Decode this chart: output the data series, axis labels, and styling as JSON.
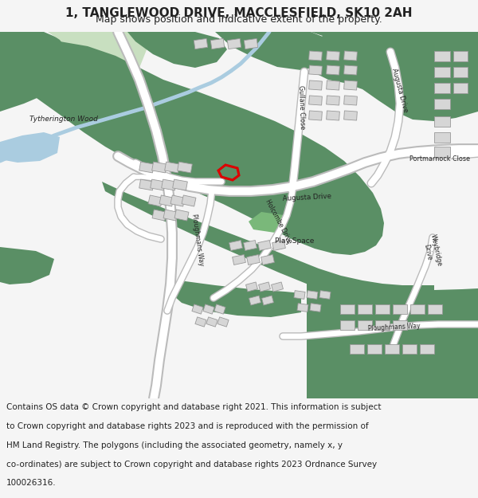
{
  "title": "1, TANGLEWOOD DRIVE, MACCLESFIELD, SK10 2AH",
  "subtitle": "Map shows position and indicative extent of the property.",
  "footer": "Contains OS data © Crown copyright and database right 2021. This information is subject to Crown copyright and database rights 2023 and is reproduced with the permission of HM Land Registry. The polygons (including the associated geometry, namely x, y co-ordinates) are subject to Crown copyright and database rights 2023 Ordnance Survey 100026316.",
  "bg_color": "#f5f5f5",
  "map_bg": "#ffffff",
  "green_dark": "#5a8f65",
  "green_light": "#c8dfc0",
  "road_color": "#ffffff",
  "building_color": "#d6d6d6",
  "building_stroke": "#999999",
  "water_color": "#aacce0",
  "highlight_color": "#ff0000",
  "text_color": "#222222",
  "road_edge": "#bbbbbb",
  "title_fontsize": 11,
  "subtitle_fontsize": 9,
  "footer_fontsize": 7.5
}
